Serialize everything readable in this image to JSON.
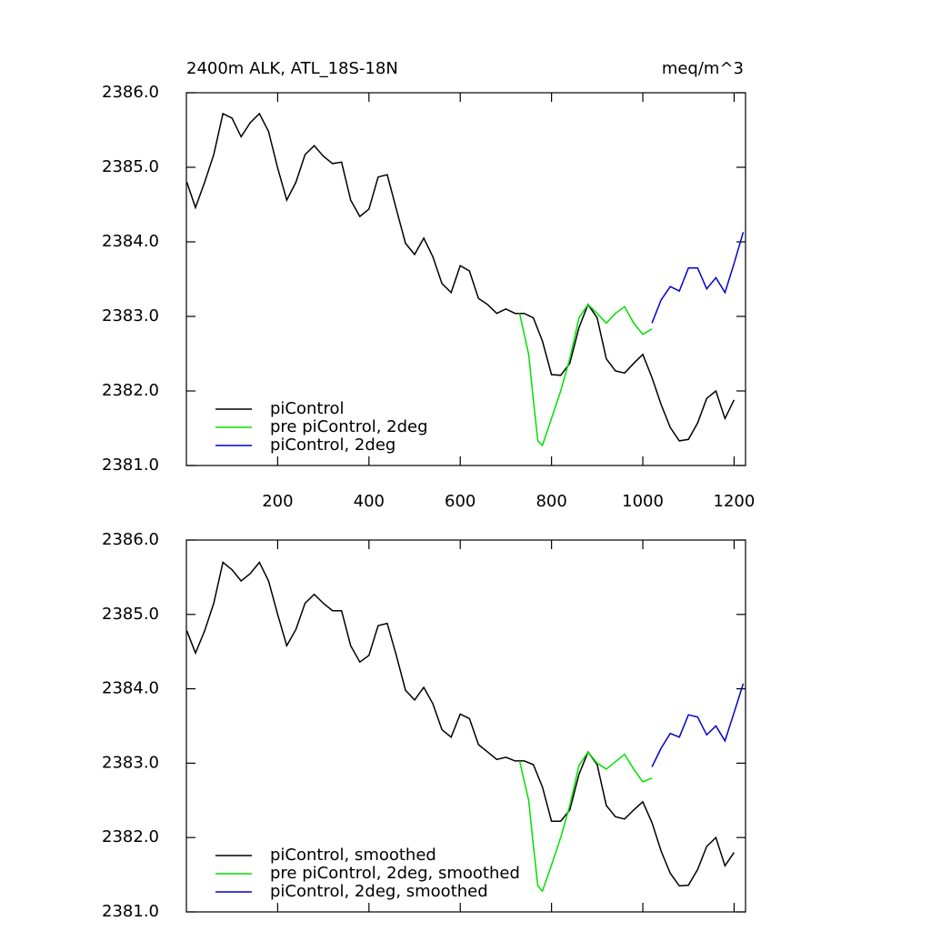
{
  "chart_data": [
    {
      "type": "line",
      "title": "2400m ALK, ATL_18S-18N",
      "units": "meq/m^3",
      "xlim": [
        0,
        1225
      ],
      "xticks": [
        200,
        400,
        600,
        800,
        1000,
        1200
      ],
      "show_xtick_labels": true,
      "ylim": [
        2381,
        2386
      ],
      "yticks": [
        {
          "value": 2381,
          "label": "2381.0"
        },
        {
          "value": 2382,
          "label": "2382.0"
        },
        {
          "value": 2383,
          "label": "2383.0"
        },
        {
          "value": 2384,
          "label": "2384.0"
        },
        {
          "value": 2385,
          "label": "2385.0"
        },
        {
          "value": 2386,
          "label": "2386.0"
        }
      ],
      "legend": "lower left",
      "series": [
        {
          "name": "piControl",
          "color": "#000000",
          "x": [
            1,
            20,
            40,
            60,
            80,
            100,
            120,
            140,
            160,
            180,
            200,
            220,
            240,
            260,
            280,
            300,
            320,
            340,
            360,
            380,
            400,
            420,
            440,
            460,
            480,
            500,
            520,
            540,
            560,
            580,
            600,
            620,
            640,
            660,
            680,
            700,
            720,
            740,
            760,
            780,
            800,
            820,
            840,
            860,
            880,
            900,
            920,
            940,
            960,
            980,
            1000,
            1020,
            1040,
            1060,
            1080,
            1100,
            1120,
            1140,
            1160,
            1180,
            1200
          ],
          "values": [
            2384.8,
            2384.46,
            2384.8,
            2385.17,
            2385.72,
            2385.66,
            2385.41,
            2385.6,
            2385.72,
            2385.48,
            2384.99,
            2384.56,
            2384.8,
            2385.17,
            2385.29,
            2385.15,
            2385.05,
            2385.07,
            2384.56,
            2384.34,
            2384.44,
            2384.87,
            2384.9,
            2384.44,
            2383.98,
            2383.83,
            2384.05,
            2383.8,
            2383.44,
            2383.32,
            2383.68,
            2383.61,
            2383.24,
            2383.16,
            2383.04,
            2383.1,
            2383.04,
            2383.04,
            2382.98,
            2382.67,
            2382.22,
            2382.21,
            2382.37,
            2382.85,
            2383.16,
            2382.98,
            2382.43,
            2382.27,
            2382.24,
            2382.37,
            2382.49,
            2382.18,
            2381.82,
            2381.51,
            2381.33,
            2381.35,
            2381.57,
            2381.9,
            2382.0,
            2381.63,
            2381.88
          ]
        },
        {
          "name": "pre piControl, 2deg",
          "color": "#00e000",
          "x": [
            730,
            750,
            760,
            770,
            780,
            800,
            820,
            840,
            860,
            880,
            900,
            920,
            940,
            960,
            980,
            1000,
            1020
          ],
          "values": [
            2383.04,
            2382.49,
            2381.88,
            2381.33,
            2381.27,
            2381.63,
            2382.0,
            2382.43,
            2382.98,
            2383.16,
            2383.04,
            2382.91,
            2383.04,
            2383.13,
            2382.91,
            2382.76,
            2382.83
          ]
        },
        {
          "name": "piControl, 2deg",
          "color": "#0000cc",
          "x": [
            1020,
            1040,
            1060,
            1080,
            1100,
            1120,
            1140,
            1160,
            1180,
            1200,
            1220
          ],
          "values": [
            2382.91,
            2383.22,
            2383.4,
            2383.34,
            2383.65,
            2383.65,
            2383.37,
            2383.52,
            2383.32,
            2383.71,
            2384.13
          ]
        }
      ]
    },
    {
      "type": "line",
      "xlim": [
        0,
        1225
      ],
      "xticks": [
        200,
        400,
        600,
        800,
        1000,
        1200
      ],
      "show_xtick_labels": false,
      "ylim": [
        2381,
        2386
      ],
      "yticks": [
        {
          "value": 2381,
          "label": "2381.0"
        },
        {
          "value": 2382,
          "label": "2382.0"
        },
        {
          "value": 2383,
          "label": "2383.0"
        },
        {
          "value": 2384,
          "label": "2384.0"
        },
        {
          "value": 2385,
          "label": "2385.0"
        },
        {
          "value": 2386,
          "label": "2386.0"
        }
      ],
      "legend": "lower left",
      "series": [
        {
          "name": "piControl, smoothed",
          "color": "#000000",
          "x": [
            1,
            20,
            40,
            60,
            80,
            100,
            120,
            140,
            160,
            180,
            200,
            220,
            240,
            260,
            280,
            300,
            320,
            340,
            360,
            380,
            400,
            420,
            440,
            460,
            480,
            500,
            520,
            540,
            560,
            580,
            600,
            620,
            640,
            660,
            680,
            700,
            720,
            740,
            760,
            780,
            800,
            820,
            840,
            860,
            880,
            900,
            920,
            940,
            960,
            980,
            1000,
            1020,
            1040,
            1060,
            1080,
            1100,
            1120,
            1140,
            1160,
            1180,
            1200
          ],
          "values": [
            2384.78,
            2384.48,
            2384.78,
            2385.15,
            2385.7,
            2385.6,
            2385.45,
            2385.55,
            2385.7,
            2385.45,
            2385.0,
            2384.58,
            2384.8,
            2385.15,
            2385.27,
            2385.15,
            2385.05,
            2385.05,
            2384.58,
            2384.36,
            2384.45,
            2384.85,
            2384.88,
            2384.45,
            2383.98,
            2383.85,
            2384.02,
            2383.8,
            2383.45,
            2383.35,
            2383.66,
            2383.6,
            2383.25,
            2383.15,
            2383.05,
            2383.08,
            2383.03,
            2383.03,
            2382.98,
            2382.68,
            2382.22,
            2382.22,
            2382.37,
            2382.85,
            2383.15,
            2382.98,
            2382.43,
            2382.28,
            2382.25,
            2382.37,
            2382.48,
            2382.2,
            2381.82,
            2381.52,
            2381.35,
            2381.36,
            2381.57,
            2381.88,
            2382.0,
            2381.62,
            2381.8
          ]
        },
        {
          "name": "pre piControl, 2deg, smoothed",
          "color": "#00e000",
          "x": [
            730,
            750,
            760,
            770,
            780,
            800,
            820,
            840,
            860,
            880,
            900,
            920,
            940,
            960,
            980,
            1000,
            1020
          ],
          "values": [
            2383.03,
            2382.5,
            2381.9,
            2381.35,
            2381.28,
            2381.63,
            2382.0,
            2382.43,
            2382.97,
            2383.15,
            2383.0,
            2382.92,
            2383.02,
            2383.12,
            2382.92,
            2382.75,
            2382.8
          ]
        },
        {
          "name": "piControl, 2deg, smoothed",
          "color": "#0000cc",
          "x": [
            1020,
            1040,
            1060,
            1080,
            1100,
            1120,
            1140,
            1160,
            1180,
            1200,
            1220
          ],
          "values": [
            2382.95,
            2383.2,
            2383.4,
            2383.35,
            2383.65,
            2383.62,
            2383.38,
            2383.5,
            2383.3,
            2383.68,
            2384.07
          ]
        }
      ]
    }
  ]
}
